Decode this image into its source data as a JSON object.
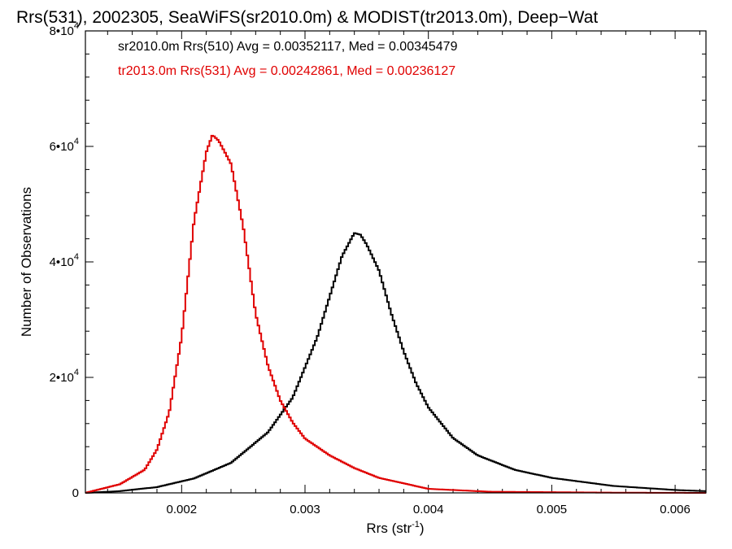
{
  "chart_data": {
    "type": "line",
    "title": "Rrs(531), 2002305, SeaWiFS(sr2010.0m) & MODIST(tr2013.0m), Deep−Wat",
    "xlabel_main": "Rrs (str",
    "xlabel_sup": "-1",
    "xlabel_tail": ")",
    "ylabel": "Number of Observations",
    "xlim": [
      0.00122,
      0.00625
    ],
    "ylim": [
      0,
      80000
    ],
    "x_ticks": [
      {
        "value": 0.002,
        "label": "0.002"
      },
      {
        "value": 0.003,
        "label": "0.003"
      },
      {
        "value": 0.004,
        "label": "0.004"
      },
      {
        "value": 0.005,
        "label": "0.005"
      },
      {
        "value": 0.006,
        "label": "0.006"
      }
    ],
    "y_ticks": [
      {
        "value": 0,
        "base": "0",
        "sup": ""
      },
      {
        "value": 20000,
        "base": "2•10",
        "sup": "4"
      },
      {
        "value": 40000,
        "base": "4•10",
        "sup": "4"
      },
      {
        "value": 60000,
        "base": "6•10",
        "sup": "4"
      },
      {
        "value": 80000,
        "base": "8•10",
        "sup": "4"
      }
    ],
    "annotations": [
      {
        "text": "sr2010.0m Rrs(510) Avg = 0.00352117, Med = 0.00345479",
        "color": "#000000"
      },
      {
        "text": "tr2013.0m Rrs(531) Avg = 0.00242861, Med = 0.00236127",
        "color": "#e00000"
      }
    ],
    "series": [
      {
        "color": "#000000",
        "points": [
          [
            0.00122,
            0
          ],
          [
            0.0015,
            300
          ],
          [
            0.0018,
            1000
          ],
          [
            0.0021,
            2500
          ],
          [
            0.0024,
            5200
          ],
          [
            0.0027,
            10500
          ],
          [
            0.0029,
            16500
          ],
          [
            0.0031,
            27000
          ],
          [
            0.0032,
            34000
          ],
          [
            0.0033,
            41000
          ],
          [
            0.0034,
            45000
          ],
          [
            0.00345,
            44700
          ],
          [
            0.0035,
            43000
          ],
          [
            0.0036,
            38500
          ],
          [
            0.0037,
            31000
          ],
          [
            0.0038,
            24500
          ],
          [
            0.0039,
            19000
          ],
          [
            0.004,
            14800
          ],
          [
            0.0042,
            9500
          ],
          [
            0.0044,
            6500
          ],
          [
            0.0047,
            4000
          ],
          [
            0.005,
            2600
          ],
          [
            0.0055,
            1200
          ],
          [
            0.006,
            500
          ],
          [
            0.00625,
            300
          ]
        ]
      },
      {
        "color": "#e00000",
        "points": [
          [
            0.00122,
            0
          ],
          [
            0.0015,
            1500
          ],
          [
            0.0017,
            4000
          ],
          [
            0.0018,
            7500
          ],
          [
            0.0019,
            14000
          ],
          [
            0.002,
            27000
          ],
          [
            0.0021,
            47000
          ],
          [
            0.0022,
            59000
          ],
          [
            0.00225,
            62000
          ],
          [
            0.0023,
            61000
          ],
          [
            0.0024,
            57000
          ],
          [
            0.0025,
            46000
          ],
          [
            0.0026,
            31000
          ],
          [
            0.0027,
            22000
          ],
          [
            0.0028,
            16000
          ],
          [
            0.0029,
            12200
          ],
          [
            0.003,
            9400
          ],
          [
            0.0032,
            6500
          ],
          [
            0.0034,
            4300
          ],
          [
            0.0036,
            2600
          ],
          [
            0.004,
            700
          ],
          [
            0.0045,
            200
          ],
          [
            0.0055,
            40
          ],
          [
            0.00625,
            0
          ]
        ]
      }
    ]
  }
}
